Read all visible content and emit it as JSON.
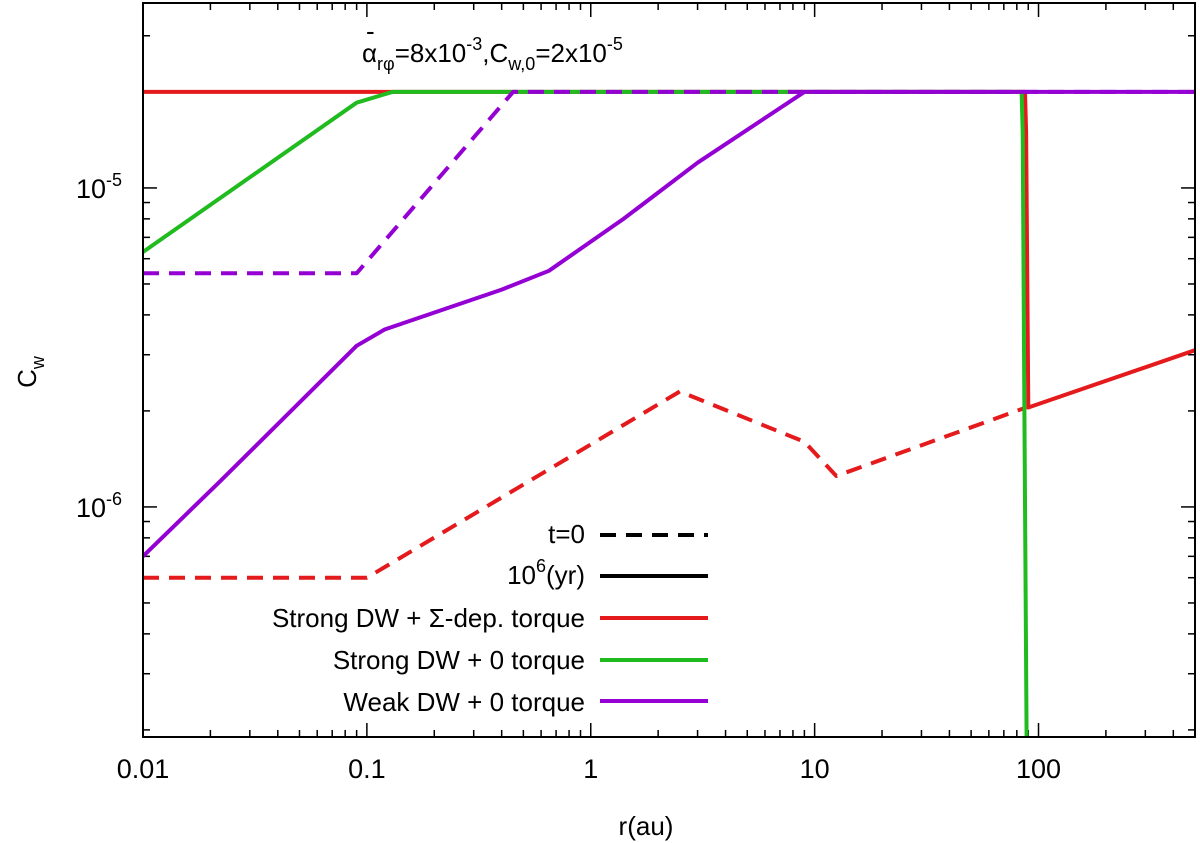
{
  "chart_data": {
    "type": "line",
    "title": "",
    "annotation": {
      "alpha_symbol": "α",
      "alpha_sub": "rφ",
      "alpha_value_base": "=8x10",
      "alpha_value_exp": "-3",
      "cw_symbol": ",C",
      "cw_sub": "w,0",
      "cw_value_base": "=2x10",
      "cw_value_exp": "-5"
    },
    "xlabel": "r(au)",
    "ylabel": {
      "base": "C",
      "sub": "w"
    },
    "x_scale": "log",
    "y_scale": "log",
    "xlim": [
      0.01,
      500
    ],
    "ylim": [
      1.9e-07,
      3.8e-05
    ],
    "x_ticks": [
      {
        "value": 0.01,
        "label": "0.01"
      },
      {
        "value": 0.1,
        "label": "0.1"
      },
      {
        "value": 1,
        "label": "1"
      },
      {
        "value": 10,
        "label": "10"
      },
      {
        "value": 100,
        "label": "100"
      }
    ],
    "y_ticks": [
      {
        "value": 1e-06,
        "base": "10",
        "exp": "-6"
      },
      {
        "value": 1e-05,
        "base": "10",
        "exp": "-5"
      }
    ],
    "legend": {
      "style_entries": [
        {
          "label": "t=0",
          "color": "#000000",
          "dash": true
        },
        {
          "label_base": "10",
          "label_exp": "6",
          "label_tail": "(yr)",
          "color": "#000000",
          "dash": false
        }
      ],
      "color_entries": [
        {
          "label": "Strong DW + Σ-dep. torque",
          "color": "#e41a1c"
        },
        {
          "label": "Strong DW + 0 torque",
          "color": "#1fbb1f"
        },
        {
          "label": "Weak DW + 0 torque",
          "color": "#9400d3"
        }
      ]
    },
    "series": [
      {
        "name": "Strong DW + Σ-dep. torque (t=0)",
        "color": "#e41a1c",
        "dash": true,
        "points": [
          [
            0.01,
            6e-07
          ],
          [
            0.1,
            6e-07
          ],
          [
            2.5,
            2.3e-06
          ],
          [
            9.0,
            1.6e-06
          ],
          [
            12.5,
            1.25e-06
          ],
          [
            88,
            2.05e-06
          ]
        ]
      },
      {
        "name": "Strong DW + Σ-dep. torque (10^6 yr)",
        "color": "#e41a1c",
        "dash": false,
        "points": [
          [
            0.01,
            2e-05
          ],
          [
            87,
            2e-05
          ],
          [
            88,
            1.5e-05
          ],
          [
            90,
            2.05e-06
          ],
          [
            500,
            3.1e-06
          ]
        ]
      },
      {
        "name": "Strong DW + 0 torque (10^6 yr)",
        "color": "#1fbb1f",
        "dash": false,
        "points": [
          [
            0.01,
            6.3e-06
          ],
          [
            0.09,
            1.85e-05
          ],
          [
            0.13,
            2e-05
          ],
          [
            84,
            2e-05
          ],
          [
            85,
            1.5e-05
          ],
          [
            86.5,
            2e-06
          ],
          [
            88.5,
            1.9e-07
          ]
        ]
      },
      {
        "name": "Weak DW + 0 torque (t=0)",
        "color": "#9400d3",
        "dash": true,
        "points": [
          [
            0.01,
            5.4e-06
          ],
          [
            0.09,
            5.4e-06
          ],
          [
            0.45,
            2e-05
          ],
          [
            500,
            2e-05
          ]
        ]
      },
      {
        "name": "Weak DW + 0 torque (10^6 yr)",
        "color": "#9400d3",
        "dash": false,
        "points": [
          [
            0.01,
            7e-07
          ],
          [
            0.022,
            1.2e-06
          ],
          [
            0.09,
            3.2e-06
          ],
          [
            0.12,
            3.6e-06
          ],
          [
            0.4,
            4.8e-06
          ],
          [
            0.65,
            5.5e-06
          ],
          [
            1.4,
            8e-06
          ],
          [
            3.0,
            1.2e-05
          ],
          [
            9.0,
            2e-05
          ],
          [
            500,
            2e-05
          ]
        ]
      }
    ]
  }
}
